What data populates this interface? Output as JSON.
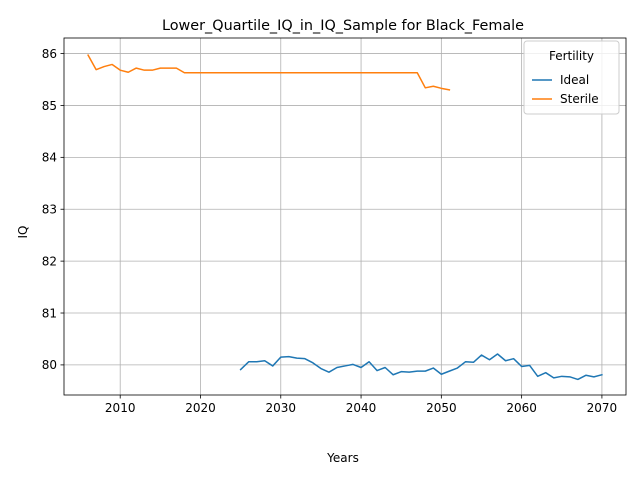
{
  "chart_data": {
    "type": "line",
    "title": "Lower_Quartile_IQ_in_IQ_Sample for Black_Female",
    "xlabel": "Years",
    "ylabel": "IQ",
    "xlim": [
      2003,
      2073
    ],
    "ylim": [
      79.42,
      86.3
    ],
    "xticks": [
      2010,
      2020,
      2030,
      2040,
      2050,
      2060,
      2070
    ],
    "yticks": [
      80,
      81,
      82,
      83,
      84,
      85,
      86
    ],
    "grid": true,
    "legend": {
      "title": "Fertility",
      "placement": "upper right"
    },
    "series": [
      {
        "name": "Ideal",
        "color": "#1f77b4",
        "x": [
          2025,
          2026,
          2027,
          2028,
          2029,
          2030,
          2031,
          2032,
          2033,
          2034,
          2035,
          2036,
          2037,
          2038,
          2039,
          2040,
          2041,
          2042,
          2043,
          2044,
          2045,
          2046,
          2047,
          2048,
          2049,
          2050,
          2051,
          2052,
          2053,
          2054,
          2055,
          2056,
          2057,
          2058,
          2059,
          2060,
          2061,
          2062,
          2063,
          2064,
          2065,
          2066,
          2067,
          2068,
          2069,
          2070
        ],
        "y": [
          79.91,
          80.06,
          80.06,
          80.08,
          79.98,
          80.15,
          80.16,
          80.13,
          80.12,
          80.04,
          79.93,
          79.86,
          79.95,
          79.98,
          80.01,
          79.95,
          80.06,
          79.89,
          79.95,
          79.81,
          79.87,
          79.86,
          79.88,
          79.88,
          79.94,
          79.82,
          79.88,
          79.94,
          80.06,
          80.05,
          80.19,
          80.1,
          80.21,
          80.08,
          80.12,
          79.97,
          79.99,
          79.78,
          79.85,
          79.75,
          79.78,
          79.77,
          79.72,
          79.8,
          79.77,
          79.81
        ]
      },
      {
        "name": "Sterile",
        "color": "#ff7f0e",
        "x": [
          2006,
          2007,
          2008,
          2009,
          2010,
          2011,
          2012,
          2013,
          2014,
          2015,
          2016,
          2017,
          2018,
          2019,
          2020,
          2021,
          2022,
          2023,
          2024,
          2025,
          2026,
          2027,
          2028,
          2029,
          2030,
          2031,
          2032,
          2033,
          2034,
          2035,
          2036,
          2037,
          2038,
          2039,
          2040,
          2041,
          2042,
          2043,
          2044,
          2045,
          2046,
          2047,
          2048,
          2049,
          2050,
          2051
        ],
        "y": [
          85.97,
          85.69,
          85.75,
          85.79,
          85.68,
          85.64,
          85.72,
          85.68,
          85.68,
          85.72,
          85.72,
          85.72,
          85.63,
          85.63,
          85.63,
          85.63,
          85.63,
          85.63,
          85.63,
          85.63,
          85.63,
          85.63,
          85.63,
          85.63,
          85.63,
          85.63,
          85.63,
          85.63,
          85.63,
          85.63,
          85.63,
          85.63,
          85.63,
          85.63,
          85.63,
          85.63,
          85.63,
          85.63,
          85.63,
          85.63,
          85.63,
          85.63,
          85.34,
          85.37,
          85.33,
          85.3
        ]
      }
    ]
  }
}
